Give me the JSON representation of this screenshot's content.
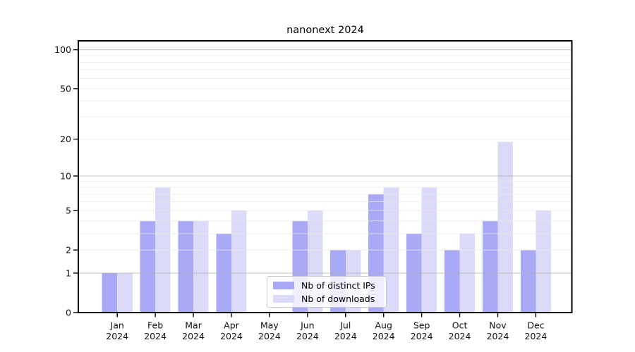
{
  "chart_data": {
    "type": "bar",
    "title": "nanonext 2024",
    "categories": [
      "Jan",
      "Feb",
      "Mar",
      "Apr",
      "May",
      "Jun",
      "Jul",
      "Aug",
      "Sep",
      "Oct",
      "Nov",
      "Dec"
    ],
    "year_label": "2024",
    "series": [
      {
        "name": "Nb of distinct IPs",
        "color": "#a9a9f6",
        "values": [
          1,
          4,
          4,
          3,
          0,
          4,
          2,
          7,
          3,
          2,
          4,
          2
        ]
      },
      {
        "name": "Nb of downloads",
        "color": "#dbdbf9",
        "values": [
          1,
          8,
          4,
          5,
          0,
          5,
          2,
          8,
          8,
          3,
          19,
          5
        ]
      }
    ],
    "yscale": "log1p",
    "ylim": [
      0,
      116
    ],
    "yticks": [
      0,
      1,
      2,
      5,
      10,
      20,
      50,
      100
    ],
    "gridlines_major": [
      1,
      10,
      100
    ],
    "gridlines_minor": [
      2,
      3,
      4,
      5,
      6,
      7,
      8,
      9,
      20,
      30,
      40,
      50,
      60,
      70,
      80,
      90
    ],
    "grid": true,
    "legend_position": "lower center",
    "xlabel": "",
    "ylabel": ""
  },
  "colors": {
    "axis": "#000000",
    "text": "#111111",
    "major_grid": "#ababab",
    "minor_grid": "#e9e9e9",
    "legend_border": "#c9c9c9",
    "background": "#ffffff"
  }
}
